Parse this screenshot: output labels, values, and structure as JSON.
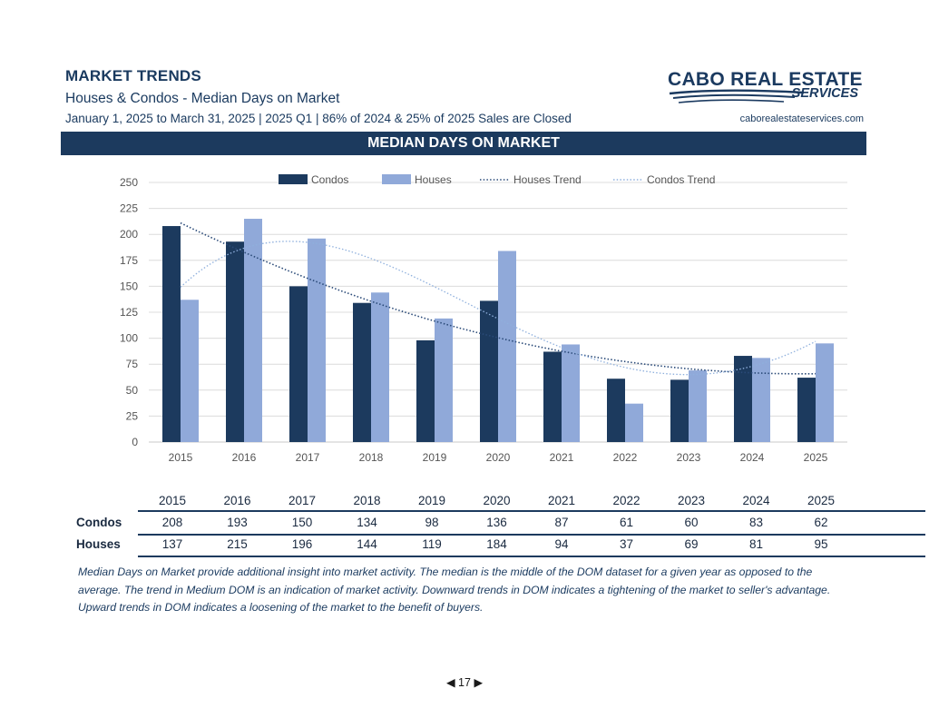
{
  "header": {
    "title": "MARKET TRENDS",
    "subtitle": "Houses & Condos - Median Days on Market",
    "date_range": "January 1, 2025 to March 31, 2025 | 2025 Q1 | 86% of 2024 & 25% of 2025 Sales are Closed",
    "logo_line1": "CABO REAL ESTATE",
    "logo_line2": "SERVICES",
    "website": "caborealestateservices.com"
  },
  "banner": "MEDIAN DAYS ON MARKET",
  "colors": {
    "condos": "#1c3a5e",
    "houses": "#90a9d9",
    "banner": "#1c3a5e"
  },
  "chart_data": {
    "type": "bar",
    "categories": [
      "2015",
      "2016",
      "2017",
      "2018",
      "2019",
      "2020",
      "2021",
      "2022",
      "2023",
      "2024",
      "2025"
    ],
    "series": [
      {
        "name": "Condos",
        "values": [
          208,
          193,
          150,
          134,
          98,
          136,
          87,
          61,
          60,
          83,
          62
        ]
      },
      {
        "name": "Houses",
        "values": [
          137,
          215,
          196,
          144,
          119,
          184,
          94,
          37,
          69,
          81,
          95
        ]
      }
    ],
    "trend_series": [
      {
        "name": "Houses Trend",
        "style": "dotted"
      },
      {
        "name": "Condos Trend",
        "style": "dotted"
      }
    ],
    "ylim": [
      0,
      250
    ],
    "yticks": [
      0,
      25,
      50,
      75,
      100,
      125,
      150,
      175,
      200,
      225,
      250
    ],
    "grid": true,
    "legend_position": "top"
  },
  "table": {
    "years": [
      "2015",
      "2016",
      "2017",
      "2018",
      "2019",
      "2020",
      "2021",
      "2022",
      "2023",
      "2024",
      "2025"
    ],
    "rows": [
      {
        "label": "Condos",
        "values": [
          "208",
          "193",
          "150",
          "134",
          "98",
          "136",
          "87",
          "61",
          "60",
          "83",
          "62"
        ]
      },
      {
        "label": "Houses",
        "values": [
          "137",
          "215",
          "196",
          "144",
          "119",
          "184",
          "94",
          "37",
          "69",
          "81",
          "95"
        ]
      }
    ]
  },
  "note": "Median Days on Market provide additional insight into market activity. The median is the middle of the DOM dataset for a given year as opposed to the average.  The trend in Medium DOM is an indication of market activity.  Downward trends in DOM indicates a tightening of the market to seller's advantage.  Upward trends in DOM indicates a loosening of the market to the benefit of buyers.",
  "pager": {
    "prev_icon": "triangle-left-icon",
    "page": "17",
    "next_icon": "triangle-right-icon"
  }
}
